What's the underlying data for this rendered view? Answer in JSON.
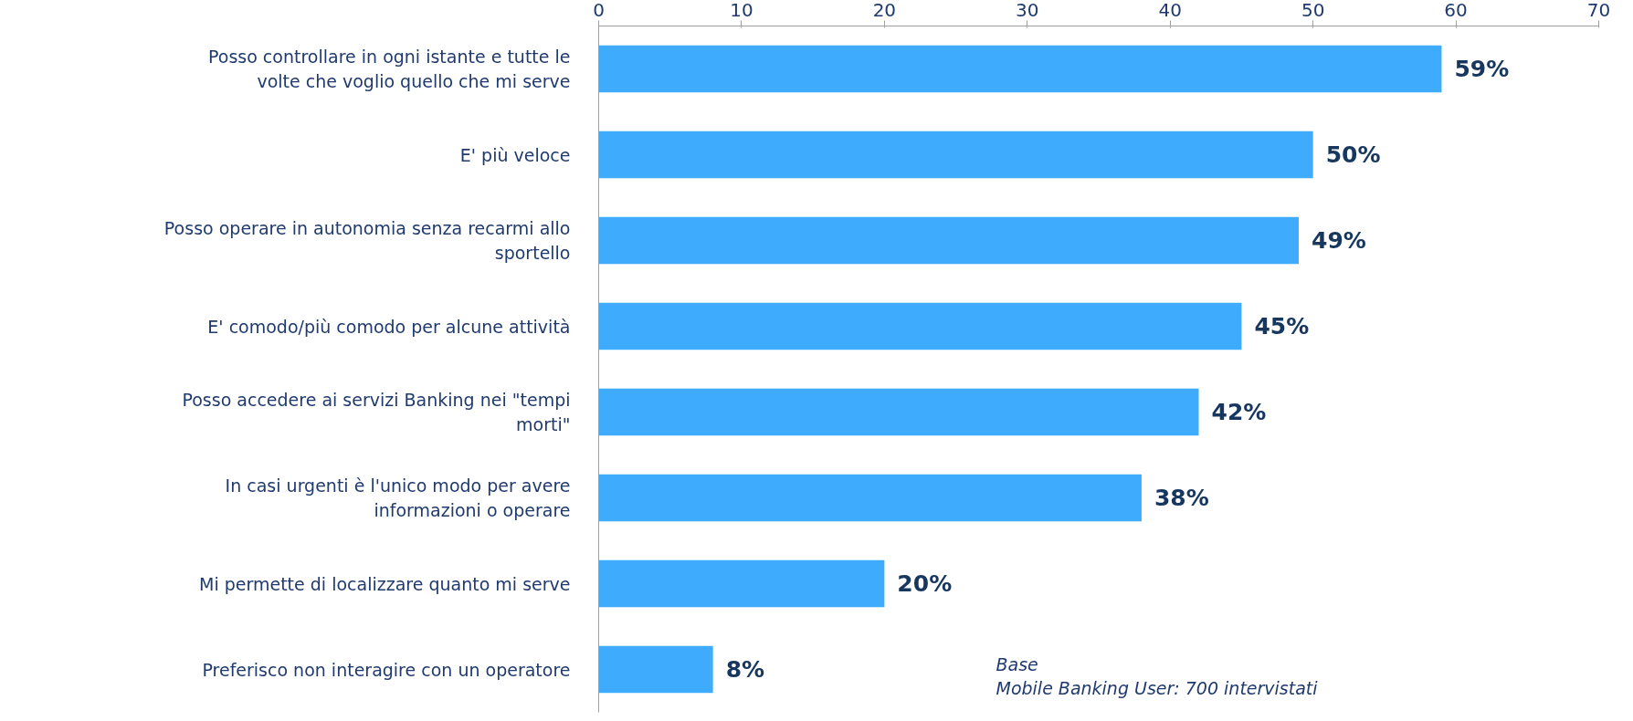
{
  "chart_data": {
    "type": "bar",
    "orientation": "horizontal",
    "categories": [
      "Posso controllare in ogni istante e tutte le volte che voglio quello che mi serve",
      "E' più veloce",
      "Posso operare in autonomia senza recarmi allo sportello",
      "E' comodo/più comodo per alcune attività",
      "Posso accedere ai servizi Banking nei \"tempi morti\"",
      "In casi urgenti è l'unico modo per avere informazioni o operare",
      "Mi permette di localizzare quanto mi serve",
      "Preferisco non interagire con un operatore"
    ],
    "values": [
      59,
      50,
      49,
      45,
      42,
      38,
      20,
      8
    ],
    "value_labels": [
      "59%",
      "50%",
      "49%",
      "45%",
      "42%",
      "38%",
      "20%",
      "8%"
    ],
    "color": "#3fabfd",
    "xlim": [
      0,
      70
    ],
    "xticks": [
      0,
      10,
      20,
      30,
      40,
      50,
      60,
      70
    ],
    "grid": false,
    "annotations": [
      "Base\nMobile Banking User: 700 intervistati"
    ]
  }
}
